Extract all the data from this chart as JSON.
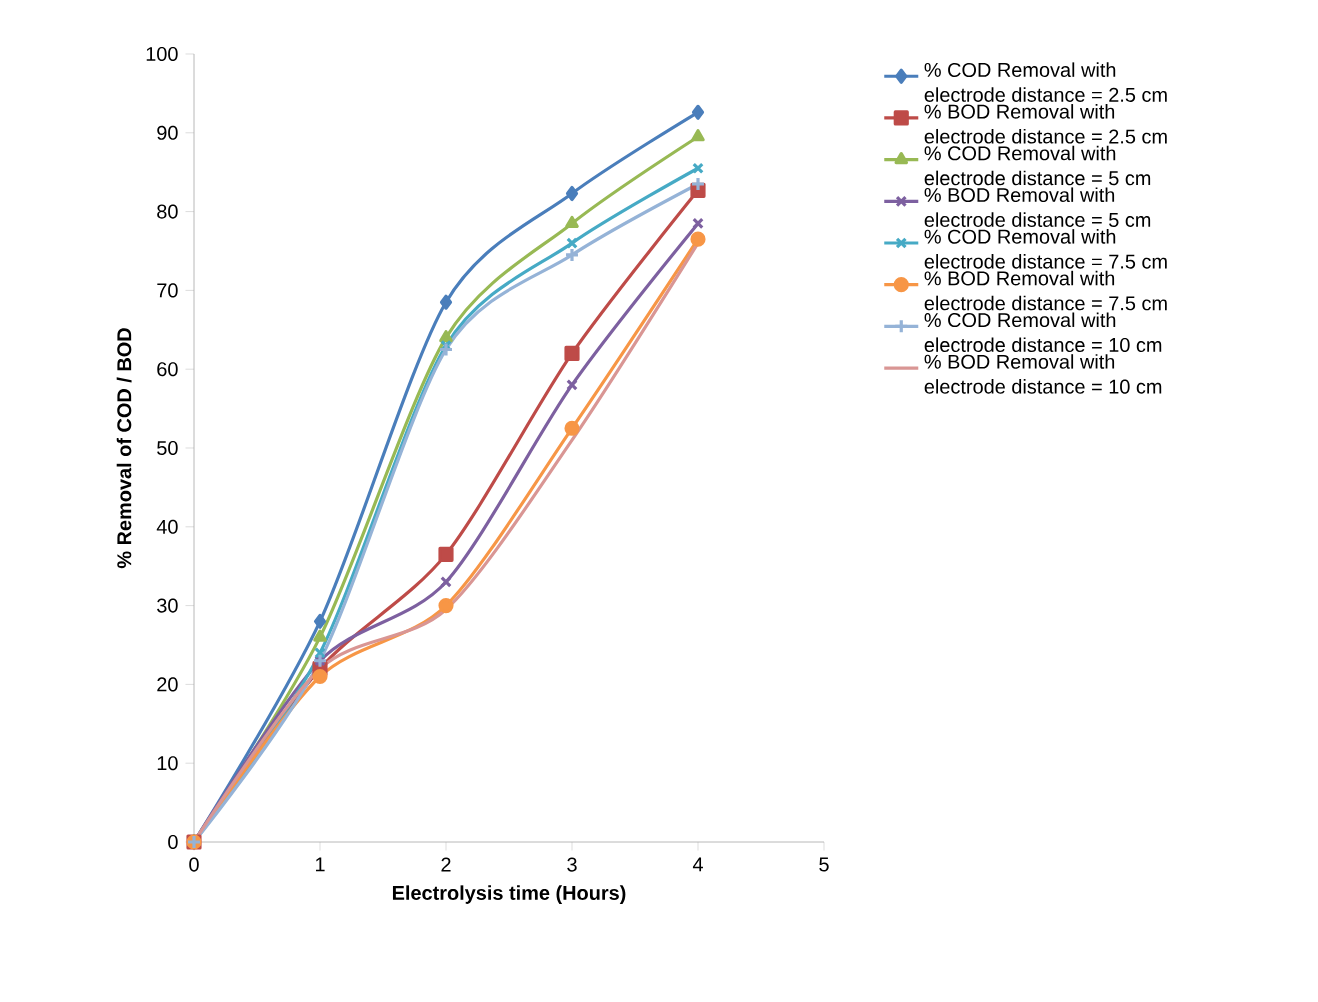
{
  "chart_data": {
    "type": "line",
    "xlabel": "Electrolysis time (Hours)",
    "ylabel": "% Removal of COD / BOD",
    "x": [
      0,
      1,
      2,
      3,
      4
    ],
    "xlim": [
      0,
      5
    ],
    "xticks": [
      0,
      1,
      2,
      3,
      4,
      5
    ],
    "ylim": [
      0,
      100
    ],
    "yticks": [
      0,
      10,
      20,
      30,
      40,
      50,
      60,
      70,
      80,
      90,
      100
    ],
    "grid": false,
    "legend": "right",
    "line_style": "solid",
    "series": [
      {
        "name": "% COD Removal with electrode distance = 2.5 cm",
        "color": "#4a7ebb",
        "marker": "diamond",
        "values": [
          0,
          28,
          68.5,
          82.3,
          92.6
        ]
      },
      {
        "name": "% BOD Removal with electrode distance = 2.5 cm",
        "color": "#be4b48",
        "marker": "square",
        "values": [
          0,
          22,
          36.5,
          62,
          82.7
        ]
      },
      {
        "name": "% COD Removal with electrode distance = 5 cm",
        "color": "#98b954",
        "marker": "triangle",
        "values": [
          0,
          26,
          64,
          78.5,
          89.5
        ]
      },
      {
        "name": "% BOD Removal with electrode distance = 5 cm",
        "color": "#7d60a0",
        "marker": "cross",
        "values": [
          0,
          23,
          33,
          58,
          78.5
        ]
      },
      {
        "name": "% COD Removal with electrode distance = 7.5 cm",
        "color": "#46aac5",
        "marker": "cross",
        "values": [
          0,
          24,
          63,
          76,
          85.5
        ]
      },
      {
        "name": "% BOD Removal with electrode distance = 7.5 cm",
        "color": "#f79646",
        "marker": "circle",
        "values": [
          0,
          21,
          30,
          52.5,
          76.5
        ]
      },
      {
        "name": "% COD Removal with electrode distance = 10 cm",
        "color": "#95b3d7",
        "marker": "plus",
        "values": [
          0,
          23,
          62.5,
          74.5,
          83.5
        ]
      },
      {
        "name": "% BOD Removal with electrode distance = 10 cm",
        "color": "#d99694",
        "marker": "none",
        "values": [
          0,
          22,
          29.5,
          51,
          76
        ]
      }
    ]
  }
}
